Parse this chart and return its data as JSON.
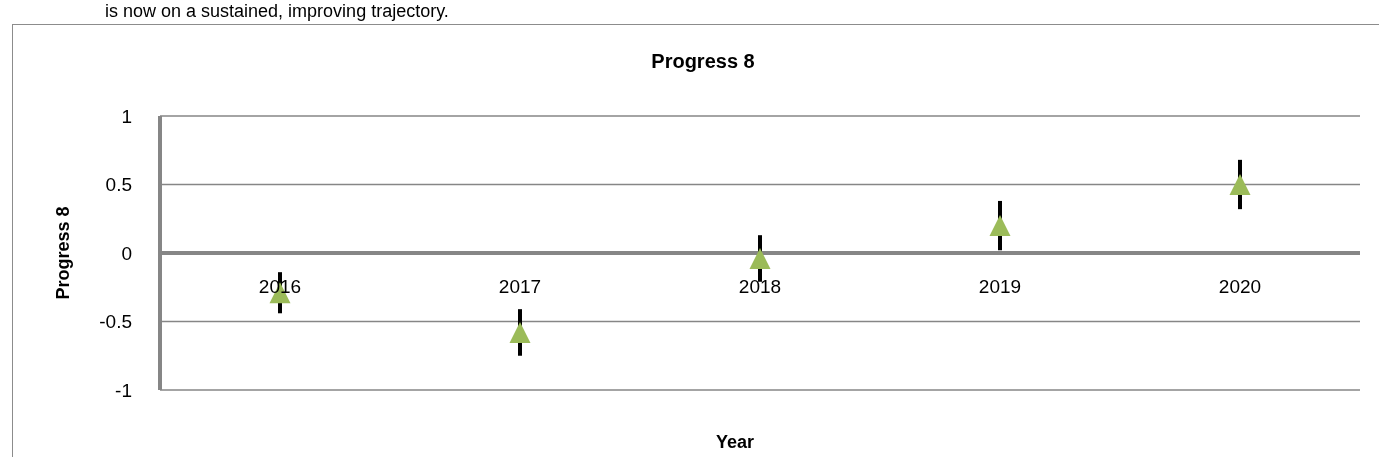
{
  "chart_data": {
    "type": "scatter",
    "title": "Progress 8",
    "xlabel": "Year",
    "ylabel": "Progress 8",
    "categories": [
      "2016",
      "2017",
      "2018",
      "2019",
      "2020"
    ],
    "values": [
      -0.29,
      -0.58,
      -0.04,
      0.2,
      0.5
    ],
    "errors": [
      0.15,
      0.17,
      0.17,
      0.18,
      0.18
    ],
    "color": "#9bbb59",
    "marker": "triangle",
    "ylim": [
      -1,
      1
    ],
    "yticks": [
      -1,
      -0.5,
      0,
      0.5,
      1
    ],
    "grid": "y",
    "annotations": [
      "is now on a sustained, improving trajectory."
    ]
  }
}
